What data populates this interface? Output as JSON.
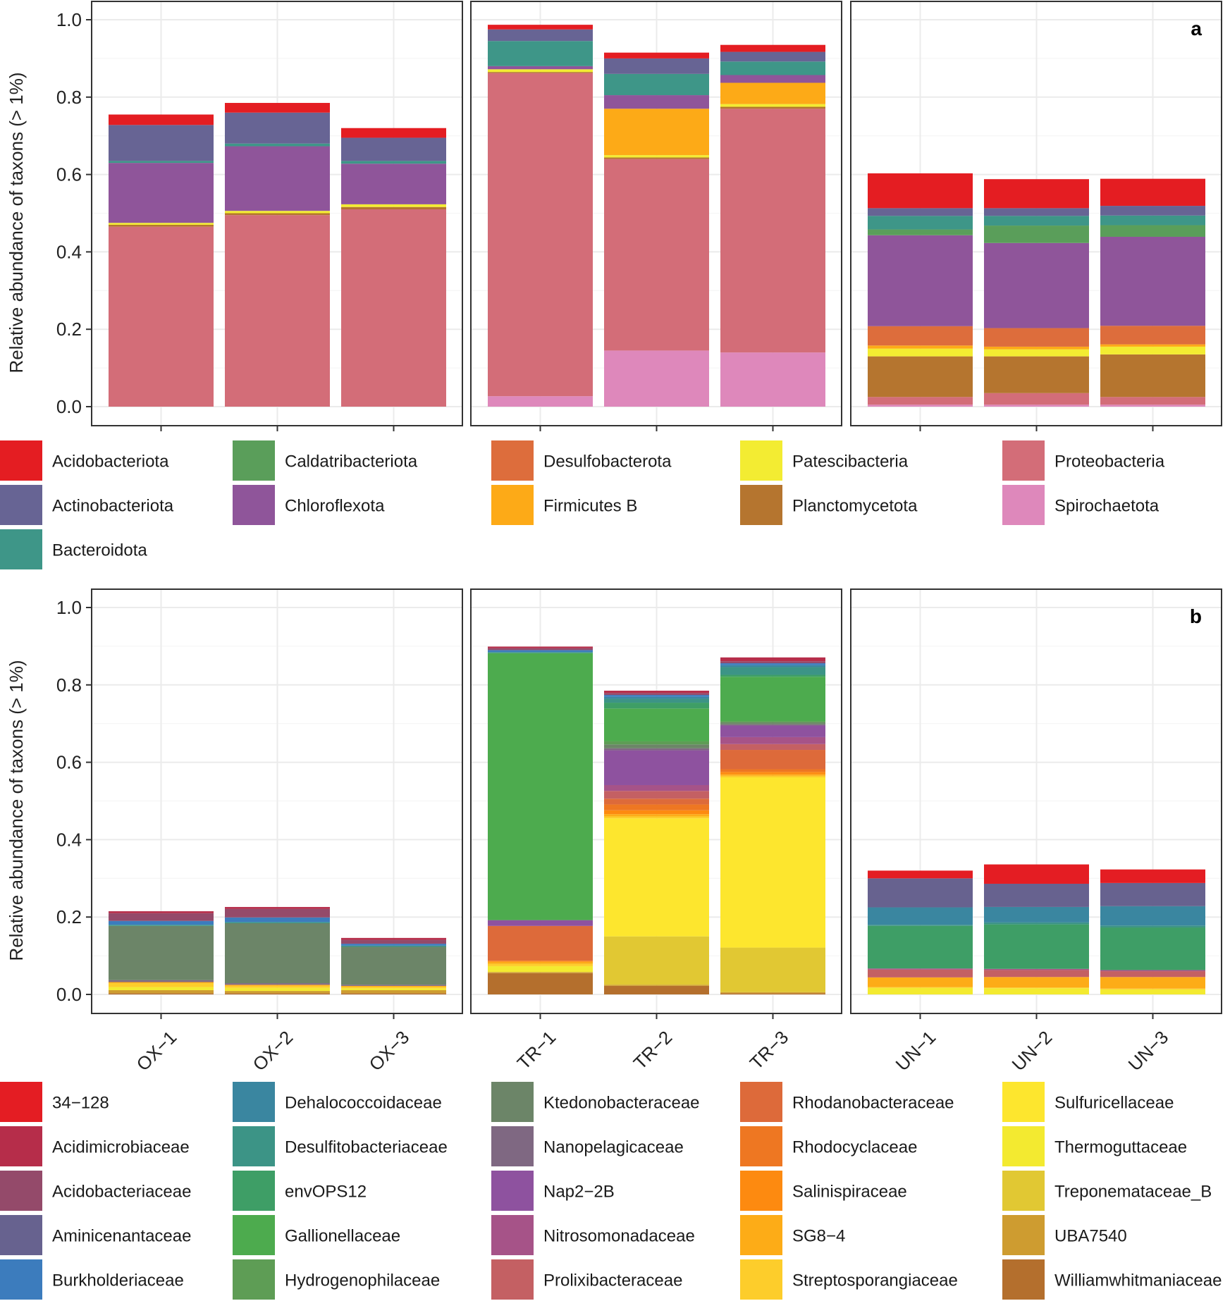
{
  "chart_data": [
    {
      "type": "bar",
      "stacked": true,
      "panel_label": "a",
      "ylabel": "Relative abundance of taxons (> 1%)",
      "ylim": [
        0,
        1.0
      ],
      "yticks": [
        "0.0",
        "0.2",
        "0.4",
        "0.6",
        "0.8",
        "1.0"
      ],
      "groups": [
        {
          "name": "OX",
          "samples": [
            "OX-1",
            "OX-2",
            "OX-3"
          ]
        },
        {
          "name": "TR",
          "samples": [
            "TR-1",
            "TR-2",
            "TR-3"
          ]
        },
        {
          "name": "UN",
          "samples": [
            "UN-1",
            "UN-2",
            "UN-3"
          ]
        }
      ],
      "categories": [
        "OX-1",
        "OX-2",
        "OX-3",
        "TR-1",
        "TR-2",
        "TR-3",
        "UN-1",
        "UN-2",
        "UN-3"
      ],
      "series": [
        {
          "name": "Spirochaetota",
          "color": "#DE88BB",
          "values": [
            0,
            0,
            0,
            0.027,
            0.145,
            0.14,
            0.005,
            0.005,
            0.005
          ]
        },
        {
          "name": "Proteobacteria",
          "color": "#D36D78",
          "values": [
            0.465,
            0.495,
            0.51,
            0.835,
            0.495,
            0.63,
            0.02,
            0.03,
            0.02
          ]
        },
        {
          "name": "Planctomycetota",
          "color": "#B5752F",
          "values": [
            0.005,
            0.005,
            0.006,
            0.003,
            0.004,
            0.005,
            0.105,
            0.095,
            0.11
          ]
        },
        {
          "name": "Patescibacteria",
          "color": "#F3EC32",
          "values": [
            0.005,
            0.006,
            0.007,
            0.007,
            0.006,
            0.007,
            0.02,
            0.018,
            0.02
          ]
        },
        {
          "name": "Firmicutes B",
          "color": "#FDAA17",
          "values": [
            0,
            0,
            0,
            0,
            0.12,
            0.055,
            0.008,
            0.007,
            0.006
          ]
        },
        {
          "name": "Desulfobacterota",
          "color": "#DD6D3C",
          "values": [
            0,
            0,
            0,
            0,
            0,
            0,
            0.05,
            0.048,
            0.048
          ]
        },
        {
          "name": "Chloroflexota",
          "color": "#8F559A",
          "values": [
            0.155,
            0.167,
            0.105,
            0.008,
            0.035,
            0.02,
            0.235,
            0.22,
            0.23
          ]
        },
        {
          "name": "Caldatribacteriota",
          "color": "#5A9E5A",
          "values": [
            0,
            0,
            0,
            0,
            0,
            0,
            0.015,
            0.045,
            0.03
          ]
        },
        {
          "name": "Bacteroidota",
          "color": "#3E9688",
          "values": [
            0.005,
            0.007,
            0.007,
            0.065,
            0.055,
            0.035,
            0.035,
            0.025,
            0.025
          ]
        },
        {
          "name": "Actinobacteriota",
          "color": "#676494",
          "values": [
            0.093,
            0.08,
            0.06,
            0.03,
            0.04,
            0.025,
            0.02,
            0.02,
            0.025
          ]
        },
        {
          "name": "Acidobacteriota",
          "color": "#E41D22",
          "values": [
            0.027,
            0.025,
            0.025,
            0.012,
            0.015,
            0.018,
            0.09,
            0.075,
            0.07
          ]
        }
      ],
      "legend": {
        "placement": "below",
        "columns": [
          [
            "Acidobacteriota",
            "Actinobacteriota",
            "Bacteroidota"
          ],
          [
            "Caldatribacteriota",
            "Chloroflexota"
          ],
          [
            "Desulfobacterota",
            "Firmicutes B"
          ],
          [
            "Patescibacteria",
            "Planctomycetota"
          ],
          [
            "Proteobacteria",
            "Spirochaetota"
          ]
        ]
      }
    },
    {
      "type": "bar",
      "stacked": true,
      "panel_label": "b",
      "ylabel": "Relative abundance of taxons (> 1%)",
      "ylim": [
        0,
        1.0
      ],
      "yticks": [
        "0.0",
        "0.2",
        "0.4",
        "0.6",
        "0.8",
        "1.0"
      ],
      "groups": [
        {
          "name": "OX",
          "samples": [
            "OX-1",
            "OX-2",
            "OX-3"
          ]
        },
        {
          "name": "TR",
          "samples": [
            "TR-1",
            "TR-2",
            "TR-3"
          ]
        },
        {
          "name": "UN",
          "samples": [
            "UN-1",
            "UN-2",
            "UN-3"
          ]
        }
      ],
      "categories": [
        "OX-1",
        "OX-2",
        "OX-3",
        "TR-1",
        "TR-2",
        "TR-3",
        "UN-1",
        "UN-2",
        "UN-3"
      ],
      "x_tick_labels": [
        "OX−1",
        "OX−2",
        "OX−3",
        "TR−1",
        "TR−2",
        "TR−3",
        "UN−1",
        "UN−2",
        "UN−3"
      ],
      "series": [
        {
          "name": "Williamwhitmaniaceae",
          "color": "#B46F2D",
          "values": [
            0.003,
            0.003,
            0.003,
            0.055,
            0.022,
            0.003,
            0,
            0,
            0
          ]
        },
        {
          "name": "UBA7540",
          "color": "#CE9C30",
          "values": [
            0.008,
            0.006,
            0.008,
            0.003,
            0.003,
            0.003,
            0,
            0,
            0
          ]
        },
        {
          "name": "Treponemataceae_B",
          "color": "#E1C833",
          "values": [
            0,
            0,
            0,
            0,
            0.125,
            0.115,
            0,
            0,
            0
          ]
        },
        {
          "name": "Thermoguttaceae",
          "color": "#F3EA30",
          "values": [
            0.008,
            0.008,
            0.005,
            0.015,
            0,
            0,
            0.017,
            0.016,
            0.013
          ]
        },
        {
          "name": "Sulfuricellaceae",
          "color": "#FDE62E",
          "values": [
            0,
            0,
            0,
            0,
            0.305,
            0.44,
            0,
            0,
            0
          ]
        },
        {
          "name": "Streptosporangiaceae",
          "color": "#FDCD2B",
          "values": [
            0.01,
            0.005,
            0.004,
            0.006,
            0.005,
            0.004,
            0.002,
            0.002,
            0.002
          ]
        },
        {
          "name": "SG8−4",
          "color": "#FDAC17",
          "values": [
            0.003,
            0.003,
            0.002,
            0.005,
            0.006,
            0.004,
            0.025,
            0.027,
            0.03
          ]
        },
        {
          "name": "Salinispiraceae",
          "color": "#FD8A10",
          "values": [
            0,
            0,
            0,
            0.003,
            0.01,
            0.006,
            0,
            0,
            0
          ]
        },
        {
          "name": "Rhodocyclaceae",
          "color": "#EE7722",
          "values": [
            0,
            0,
            0,
            0,
            0.015,
            0.007,
            0,
            0,
            0
          ]
        },
        {
          "name": "Rhodanobacteraceae",
          "color": "#DD6A3A",
          "values": [
            0,
            0,
            0,
            0.09,
            0.015,
            0.05,
            0,
            0,
            0
          ]
        },
        {
          "name": "Prolixibacteraceae",
          "color": "#C46063",
          "values": [
            0,
            0,
            0,
            0,
            0.02,
            0.015,
            0.02,
            0.018,
            0.015
          ]
        },
        {
          "name": "Nitrosomonadaceae",
          "color": "#A65388",
          "values": [
            0,
            0,
            0,
            0,
            0.015,
            0.018,
            0.003,
            0.003,
            0.003
          ]
        },
        {
          "name": "Nap2−2B",
          "color": "#8E529F",
          "values": [
            0,
            0,
            0,
            0.015,
            0.09,
            0.03,
            0,
            0,
            0
          ]
        },
        {
          "name": "Nanopelagicaceae",
          "color": "#7F6882",
          "values": [
            0.005,
            0.004,
            0.003,
            0,
            0.005,
            0.003,
            0,
            0,
            0
          ]
        },
        {
          "name": "Ktedonobacteraceae",
          "color": "#6C8568",
          "values": [
            0.14,
            0.155,
            0.098,
            0,
            0.01,
            0.005,
            0,
            0,
            0
          ]
        },
        {
          "name": "Hydrogenophilaceae",
          "color": "#5E9D55",
          "values": [
            0,
            0,
            0,
            0,
            0.008,
            0.003,
            0,
            0,
            0
          ]
        },
        {
          "name": "Gallionellaceae",
          "color": "#4DAB4E",
          "values": [
            0,
            0,
            0,
            0.69,
            0.085,
            0.115,
            0,
            0,
            0
          ]
        },
        {
          "name": "envOPS12",
          "color": "#3E9E66",
          "values": [
            0,
            0,
            0,
            0,
            0.015,
            0.005,
            0.11,
            0.115,
            0.11
          ]
        },
        {
          "name": "Desulfitobacteriaceae",
          "color": "#3C9486",
          "values": [
            0.003,
            0.003,
            0.003,
            0.003,
            0.01,
            0.02,
            0.003,
            0.005,
            0.005
          ]
        },
        {
          "name": "Dehalococcoidaceae",
          "color": "#3A86A0",
          "values": [
            0,
            0,
            0,
            0,
            0.005,
            0.005,
            0.045,
            0.04,
            0.05
          ]
        },
        {
          "name": "Burkholderiaceae",
          "color": "#3C7CBD",
          "values": [
            0.01,
            0.012,
            0.005,
            0.005,
            0.005,
            0.005,
            0,
            0,
            0
          ]
        },
        {
          "name": "Aminicenantaceae",
          "color": "#67628F",
          "values": [
            0,
            0,
            0,
            0,
            0,
            0,
            0.075,
            0.06,
            0.06
          ]
        },
        {
          "name": "Acidobacteriaceae",
          "color": "#944A6A",
          "values": [
            0.02,
            0.022,
            0.01,
            0.005,
            0.005,
            0.005,
            0,
            0,
            0
          ]
        },
        {
          "name": "Acidimicrobiaceae",
          "color": "#B62D4A",
          "values": [
            0.005,
            0.005,
            0.005,
            0.004,
            0.006,
            0.01,
            0,
            0,
            0
          ]
        },
        {
          "name": "34−128",
          "color": "#E41D23",
          "values": [
            0,
            0,
            0,
            0,
            0,
            0,
            0.02,
            0.05,
            0.035
          ]
        }
      ],
      "legend": {
        "placement": "below",
        "columns": [
          [
            "34−128",
            "Acidimicrobiaceae",
            "Acidobacteriaceae",
            "Aminicenantaceae",
            "Burkholderiaceae"
          ],
          [
            "Dehalococcoidaceae",
            "Desulfitobacteriaceae",
            "envOPS12",
            "Gallionellaceae",
            "Hydrogenophilaceae"
          ],
          [
            "Ktedonobacteraceae",
            "Nanopelagicaceae",
            "Nap2−2B",
            "Nitrosomonadaceae",
            "Prolixibacteraceae"
          ],
          [
            "Rhodanobacteraceae",
            "Rhodocyclaceae",
            "Salinispiraceae",
            "SG8−4",
            "Streptosporangiaceae"
          ],
          [
            "Sulfuricellaceae",
            "Thermoguttaceae",
            "Treponemataceae_B",
            "UBA7540",
            "Williamwhitmaniaceae"
          ]
        ]
      }
    }
  ]
}
